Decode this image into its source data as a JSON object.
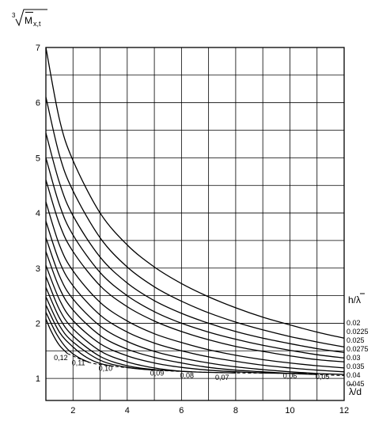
{
  "chart_data": {
    "type": "line",
    "ylabel_prefix": "3",
    "ylabel_main": "M",
    "ylabel_sub": "x,t",
    "xlabel": "λ/d",
    "legend_title": "h/λ",
    "xlim": [
      1,
      12
    ],
    "ylim": [
      0.6,
      7
    ],
    "grid": true,
    "xticks": [
      "2",
      "4",
      "6",
      "8",
      "10",
      "12"
    ],
    "yticks": [
      "1",
      "2",
      "3",
      "4",
      "5",
      "6",
      "7"
    ],
    "series": [
      {
        "name": "0.02",
        "x": [
          1,
          1.5,
          2,
          3,
          4,
          5,
          6,
          7,
          8,
          9,
          10,
          11,
          12
        ],
        "y": [
          7.0,
          5.7,
          4.95,
          4.0,
          3.42,
          3.02,
          2.72,
          2.48,
          2.28,
          2.11,
          1.97,
          1.84,
          1.73
        ]
      },
      {
        "name": "0.0225",
        "x": [
          1,
          1.5,
          2,
          3,
          4,
          5,
          6,
          7,
          8,
          9,
          10,
          11,
          12
        ],
        "y": [
          6.1,
          5.05,
          4.4,
          3.55,
          3.02,
          2.66,
          2.4,
          2.19,
          2.02,
          1.88,
          1.76,
          1.66,
          1.57
        ]
      },
      {
        "name": "0.025",
        "x": [
          1,
          1.5,
          2,
          3,
          4,
          5,
          6,
          7,
          8,
          9,
          10,
          11,
          12
        ],
        "y": [
          5.45,
          4.55,
          3.95,
          3.2,
          2.73,
          2.41,
          2.18,
          2.0,
          1.85,
          1.73,
          1.63,
          1.54,
          1.47
        ]
      },
      {
        "name": "0.0275",
        "x": [
          1,
          1.5,
          2,
          3,
          4,
          5,
          6,
          7,
          8,
          9,
          10,
          11,
          12
        ],
        "y": [
          5.0,
          4.15,
          3.6,
          2.92,
          2.5,
          2.21,
          2.0,
          1.84,
          1.71,
          1.6,
          1.51,
          1.43,
          1.37
        ]
      },
      {
        "name": "0.03",
        "x": [
          1,
          1.5,
          2,
          3,
          4,
          5,
          6,
          7,
          8,
          9,
          10,
          11,
          12
        ],
        "y": [
          4.6,
          3.8,
          3.3,
          2.68,
          2.3,
          2.04,
          1.85,
          1.7,
          1.58,
          1.49,
          1.41,
          1.34,
          1.3
        ]
      },
      {
        "name": "0.035",
        "x": [
          1,
          1.5,
          2,
          3,
          4,
          5,
          6,
          7,
          8,
          9,
          10,
          11,
          12
        ],
        "y": [
          4.2,
          3.42,
          2.95,
          2.38,
          2.04,
          1.81,
          1.65,
          1.52,
          1.42,
          1.34,
          1.28,
          1.23,
          1.19
        ]
      },
      {
        "name": "0.04",
        "x": [
          1,
          1.5,
          2,
          3,
          4,
          5,
          6,
          7,
          8,
          9,
          10,
          11,
          12
        ],
        "y": [
          3.85,
          3.12,
          2.68,
          2.15,
          1.84,
          1.64,
          1.5,
          1.39,
          1.31,
          1.24,
          1.19,
          1.15,
          1.12
        ]
      },
      {
        "name": "0.045",
        "x": [
          1,
          1.5,
          2,
          3,
          4,
          5,
          6,
          7,
          8,
          9,
          10,
          11,
          12
        ],
        "y": [
          3.55,
          2.86,
          2.44,
          1.95,
          1.67,
          1.49,
          1.37,
          1.28,
          1.21,
          1.16,
          1.12,
          1.09,
          1.07
        ]
      },
      {
        "name": "0.05",
        "x": [
          1,
          1.5,
          2,
          3,
          4,
          5,
          6,
          7,
          8,
          9,
          10,
          11
        ],
        "y": [
          3.3,
          2.64,
          2.24,
          1.78,
          1.53,
          1.38,
          1.28,
          1.2,
          1.15,
          1.12,
          1.09,
          1.07
        ]
      },
      {
        "name": "0.06",
        "x": [
          1,
          1.5,
          2,
          3,
          4,
          5,
          6,
          7,
          8,
          9,
          10,
          10.5
        ],
        "y": [
          3.05,
          2.43,
          2.05,
          1.63,
          1.41,
          1.28,
          1.2,
          1.15,
          1.12,
          1.1,
          1.09,
          1.09
        ]
      },
      {
        "name": "0.07",
        "x": [
          1,
          1.5,
          2,
          3,
          4,
          5,
          6,
          7,
          8
        ],
        "y": [
          2.85,
          2.25,
          1.9,
          1.5,
          1.3,
          1.19,
          1.13,
          1.11,
          1.1
        ]
      },
      {
        "name": "0.08",
        "x": [
          1,
          1.5,
          2,
          3,
          4,
          5,
          6,
          6.4
        ],
        "y": [
          2.65,
          2.1,
          1.77,
          1.4,
          1.23,
          1.16,
          1.13,
          1.12
        ]
      },
      {
        "name": "0.09",
        "x": [
          1,
          1.5,
          2,
          3,
          4,
          5
        ],
        "y": [
          2.48,
          1.96,
          1.66,
          1.33,
          1.2,
          1.15
        ]
      },
      {
        "name": "0.10",
        "x": [
          1,
          1.5,
          2,
          2.5,
          3,
          3.5
        ],
        "y": [
          2.33,
          1.84,
          1.57,
          1.38,
          1.27,
          1.22
        ]
      },
      {
        "name": "0.11",
        "x": [
          1,
          1.4,
          1.8,
          2.2,
          2.6
        ],
        "y": [
          2.2,
          1.8,
          1.53,
          1.38,
          1.29
        ]
      },
      {
        "name": "0.12",
        "x": [
          1,
          1.2,
          1.5,
          1.8
        ],
        "y": [
          2.08,
          1.85,
          1.6,
          1.45
        ]
      }
    ],
    "boundary": {
      "x": [
        1.8,
        2.6,
        3.5,
        5,
        6.4,
        8,
        10.5,
        11,
        12
      ],
      "y": [
        1.45,
        1.29,
        1.22,
        1.15,
        1.12,
        1.1,
        1.09,
        1.07,
        1.05
      ]
    },
    "lambda_labels": [
      "0,12",
      "0,11",
      "0,10",
      "0,09",
      "0,08",
      "0,07",
      "0,06",
      "0,05"
    ],
    "ratio_labels": [
      "0.02",
      "0.0225",
      "0.025",
      "0.0275",
      "0.03",
      "0.035",
      "0.04",
      "0.045"
    ]
  }
}
